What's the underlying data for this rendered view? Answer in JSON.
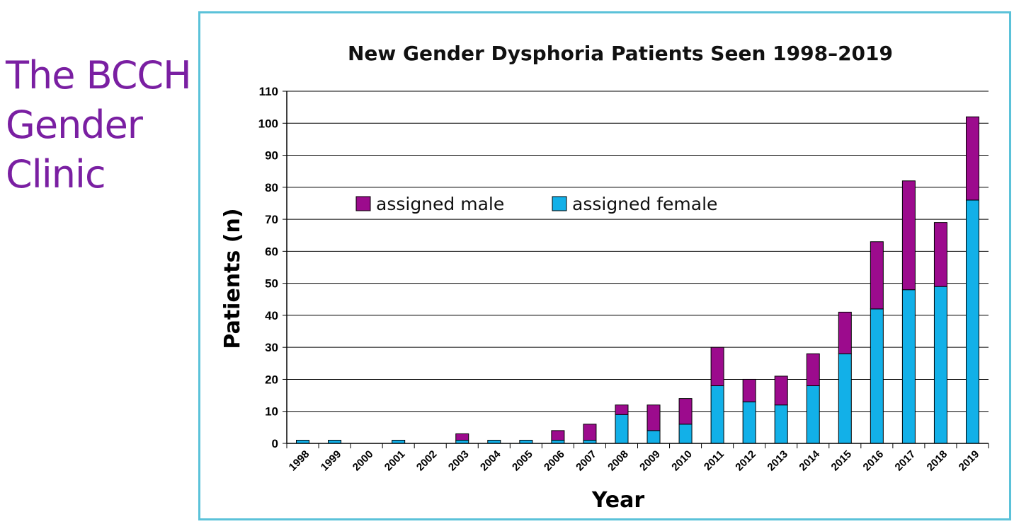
{
  "slide": {
    "title_lines": [
      "The BCCH",
      "Gender",
      "Clinic"
    ]
  },
  "colors": {
    "male": "#9c0b8d",
    "female": "#12b0e8",
    "frame": "#5bc2d9",
    "title": "#7a1fa2"
  },
  "chart_data": {
    "type": "bar",
    "stacked": true,
    "title": "New Gender Dysphoria Patients Seen 1998–2019",
    "xlabel": "Year",
    "ylabel": "Patients (n)",
    "ylim": [
      0,
      110
    ],
    "yticks": [
      0,
      10,
      20,
      30,
      40,
      50,
      60,
      70,
      80,
      90,
      100,
      110
    ],
    "grid": true,
    "legend_position": "top-left",
    "categories": [
      "1998",
      "1999",
      "2000",
      "2001",
      "2002",
      "2003",
      "2004",
      "2005",
      "2006",
      "2007",
      "2008",
      "2009",
      "2010",
      "2011",
      "2012",
      "2013",
      "2014",
      "2015",
      "2016",
      "2017",
      "2018",
      "2019"
    ],
    "series": [
      {
        "name": "assigned female",
        "color": "#12b0e8",
        "values": [
          1,
          1,
          0,
          1,
          0,
          1,
          1,
          1,
          1,
          1,
          9,
          4,
          6,
          18,
          13,
          12,
          18,
          28,
          42,
          48,
          49,
          76
        ]
      },
      {
        "name": "assigned male",
        "color": "#9c0b8d",
        "values": [
          0,
          0,
          0,
          0,
          0,
          2,
          0,
          0,
          3,
          5,
          3,
          8,
          8,
          12,
          7,
          9,
          10,
          13,
          21,
          34,
          20,
          26
        ]
      }
    ],
    "legend": [
      "assigned male",
      "assigned female"
    ]
  }
}
